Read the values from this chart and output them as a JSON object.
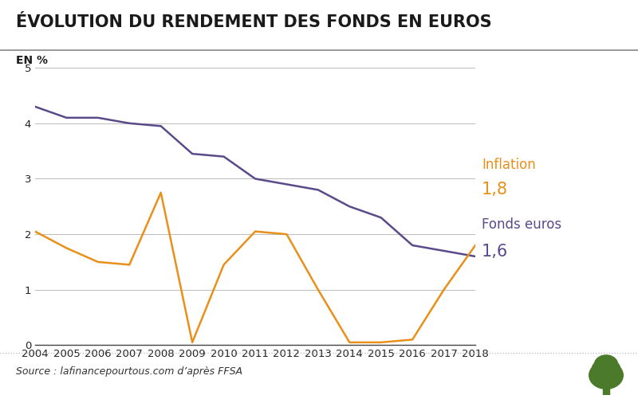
{
  "title": "ÉVOLUTION DU RENDEMENT DES FONDS EN EUROS",
  "ylabel": "EN %",
  "source": "Source : lafinancepourtous.com d’après FFSA",
  "years": [
    2004,
    2005,
    2006,
    2007,
    2008,
    2009,
    2010,
    2011,
    2012,
    2013,
    2014,
    2015,
    2016,
    2017,
    2018
  ],
  "fonds_euros": [
    4.3,
    4.1,
    4.1,
    4.0,
    3.95,
    3.45,
    3.4,
    3.0,
    2.9,
    2.8,
    2.5,
    2.3,
    1.8,
    1.7,
    1.6
  ],
  "inflation": [
    2.05,
    1.75,
    1.5,
    1.45,
    2.75,
    0.05,
    1.45,
    2.05,
    2.0,
    1.0,
    0.05,
    0.05,
    0.1,
    1.0,
    1.8
  ],
  "fonds_color": "#5b4a8a",
  "inflation_color": "#e8901a",
  "background_color": "#ffffff",
  "grid_color": "#bbbbbb",
  "ylim": [
    0,
    5
  ],
  "yticks": [
    0,
    1,
    2,
    3,
    4,
    5
  ],
  "title_fontsize": 15,
  "annotation_fontsize": 12,
  "annotation_value_fontsize": 15,
  "legend_inflation_label": "Inflation",
  "legend_inflation_value": "1,8",
  "legend_fonds_label": "Fonds euros",
  "legend_fonds_value": "1,6"
}
